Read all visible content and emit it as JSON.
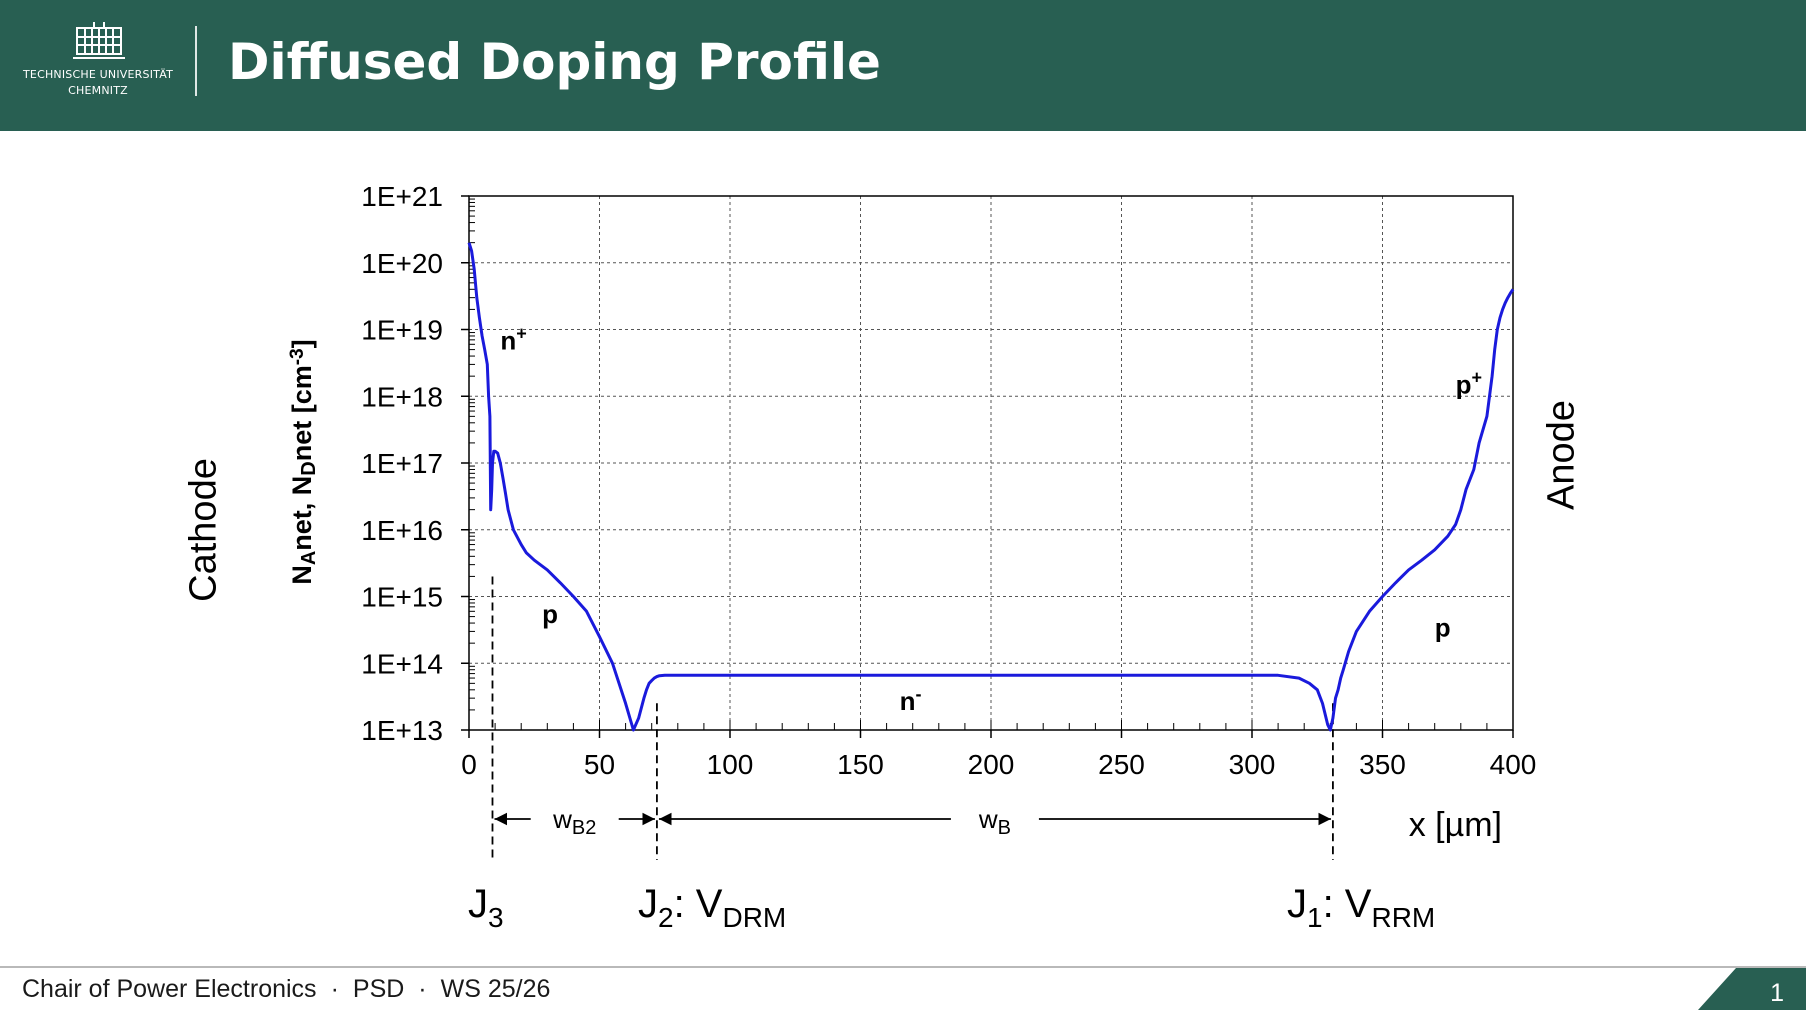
{
  "header": {
    "logo_line1": "TECHNISCHE UNIVERSITÄT",
    "logo_line2": "CHEMNITZ",
    "title": "Diffused Doping Profile"
  },
  "side_labels": {
    "left": "Cathode",
    "right": "Anode"
  },
  "junctions": {
    "j3": {
      "main": "J",
      "sub": "3"
    },
    "j2": {
      "main": "J",
      "sub": "2",
      "sep": ": V",
      "sub2": "DRM"
    },
    "j1": {
      "main": "J",
      "sub": "1",
      "sep": ": V",
      "sub2": "RRM"
    }
  },
  "footer": {
    "chair": "Chair of Power Electronics",
    "course": "PSD",
    "term": "WS 25/26",
    "page": "1"
  },
  "colors": {
    "header": "#285f52",
    "curve": "#1a1adc"
  },
  "chart_data": {
    "type": "line",
    "xlabel": "x [µm]",
    "ylabel": "N_Anet, N_Dnet [cm^-3]",
    "xlim": [
      0,
      400
    ],
    "ylim_log10": [
      13,
      21
    ],
    "y_scale": "log",
    "grid": true,
    "xticks": [
      0,
      50,
      100,
      150,
      200,
      250,
      300,
      350,
      400
    ],
    "xtick_labels": [
      "0",
      "50",
      "100",
      "150",
      "200",
      "250",
      "300",
      "350",
      "400"
    ],
    "yticks_log10": [
      13,
      14,
      15,
      16,
      17,
      18,
      19,
      20,
      21
    ],
    "ytick_labels": [
      "1E+13",
      "1E+14",
      "1E+15",
      "1E+16",
      "1E+17",
      "1E+18",
      "1E+19",
      "1E+20",
      "1E+21"
    ],
    "series": [
      {
        "name": "",
        "x": [
          0,
          1,
          2,
          3,
          4,
          5,
          6,
          7,
          7.5,
          8,
          8.3,
          8.7,
          9,
          9.5,
          10,
          11,
          12,
          13,
          14,
          15,
          17,
          20,
          22,
          25,
          30,
          35,
          40,
          45,
          50,
          55,
          60,
          63,
          65,
          67,
          68,
          69,
          70,
          71,
          72,
          73,
          75,
          78,
          80,
          85,
          90,
          100,
          150,
          200,
          250,
          300,
          310,
          318,
          322,
          325,
          327,
          329,
          330,
          331,
          332,
          333,
          334,
          335,
          337,
          340,
          345,
          350,
          355,
          360,
          365,
          370,
          375,
          378,
          380,
          382,
          385,
          387,
          390,
          392,
          393,
          394,
          395,
          396,
          397,
          398,
          399,
          400
        ],
        "y": [
          2e+20,
          1.5e+20,
          8e+19,
          3e+19,
          1.5e+19,
          8e+18,
          5e+18,
          3e+18,
          1e+18,
          5e+17,
          2e+16,
          4e+16,
          1e+17,
          1.5e+17,
          1.5e+17,
          1.4e+17,
          1e+17,
          6e+16,
          3.5e+16,
          2e+16,
          1e+16,
          6000000000000000.0,
          4500000000000000.0,
          3500000000000000.0,
          2500000000000000.0,
          1600000000000000.0,
          1000000000000000.0,
          600000000000000.0,
          250000000000000.0,
          100000000000000.0,
          25000000000000.0,
          10000000000000.0,
          15000000000000.0,
          30000000000000.0,
          40000000000000.0,
          50000000000000.0,
          55000000000000.0,
          60000000000000.0,
          63000000000000.0,
          65000000000000.0,
          66000000000000.0,
          66000000000000.0,
          66000000000000.0,
          66000000000000.0,
          66000000000000.0,
          66000000000000.0,
          66000000000000.0,
          66000000000000.0,
          66000000000000.0,
          66000000000000.0,
          66000000000000.0,
          60000000000000.0,
          50000000000000.0,
          40000000000000.0,
          25000000000000.0,
          12000000000000.0,
          10000000000000.0,
          15000000000000.0,
          30000000000000.0,
          40000000000000.0,
          60000000000000.0,
          80000000000000.0,
          150000000000000.0,
          300000000000000.0,
          600000000000000.0,
          1000000000000000.0,
          1600000000000000.0,
          2500000000000000.0,
          3500000000000000.0,
          5000000000000000.0,
          8000000000000000.0,
          1.2e+16,
          2e+16,
          4e+16,
          8e+16,
          2e+17,
          5e+17,
          2e+18,
          5e+18,
          1e+19,
          1.5e+19,
          2e+19,
          2.5e+19,
          3e+19,
          3.5e+19,
          4e+19
        ]
      }
    ],
    "region_labels": [
      {
        "text": "n",
        "sup": "+",
        "x": 12,
        "y": 5e+18
      },
      {
        "text": "p",
        "x": 28,
        "y": 400000000000000.0
      },
      {
        "text": "n",
        "sup": "-",
        "x": 165,
        "y": 20000000000000.0
      },
      {
        "text": "p",
        "sup": "+",
        "x": 378,
        "y": 1.1e+18
      },
      {
        "text": "p",
        "x": 370,
        "y": 250000000000000.0
      }
    ],
    "dimension_arrows": [
      {
        "label": "w",
        "sub": "B2",
        "from": 9,
        "to": 72
      },
      {
        "label": "w",
        "sub": "B",
        "from": 72,
        "to": 331
      }
    ],
    "junction_x": [
      9,
      72,
      331
    ]
  }
}
